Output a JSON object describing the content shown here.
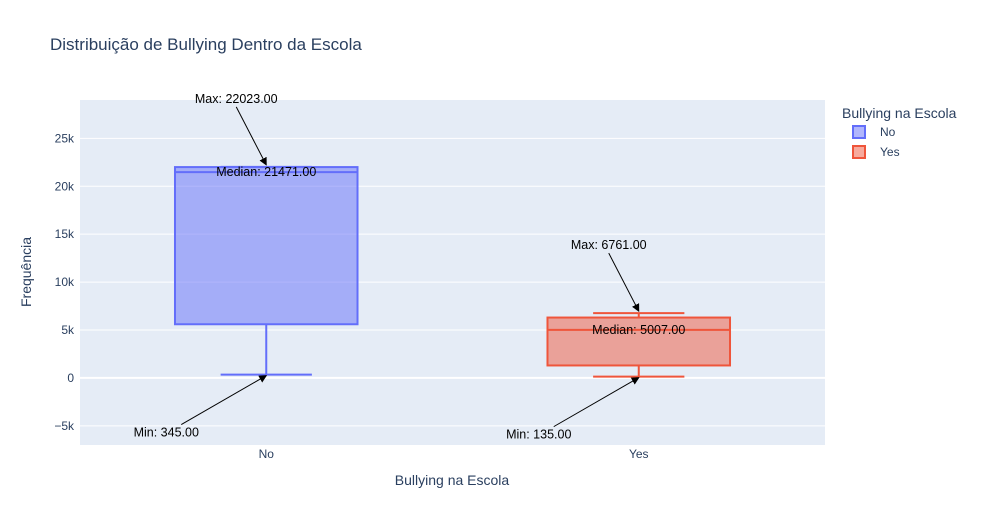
{
  "chart_data": {
    "type": "box",
    "title": "Distribuição de Bullying Dentro da Escola",
    "xlabel": "Bullying na Escola",
    "ylabel": "Frequência",
    "categories": [
      "No",
      "Yes"
    ],
    "ylim": [
      -7000,
      29000
    ],
    "yticks": [
      -5000,
      0,
      5000,
      10000,
      15000,
      20000,
      25000
    ],
    "ytick_labels": [
      "−5k",
      "0",
      "5k",
      "10k",
      "15k",
      "20k",
      "25k"
    ],
    "grid": true,
    "legend": {
      "title": "Bullying na Escola",
      "placement": "right",
      "entries": [
        "No",
        "Yes"
      ]
    },
    "series": [
      {
        "name": "No",
        "color": "#636efa",
        "min": 345,
        "q1": 5600,
        "median": 21471,
        "q3": 22000,
        "max": 22023,
        "annotations": {
          "max": "Max: 22023.00",
          "median": "Median: 21471.00",
          "min": "Min: 345.00"
        }
      },
      {
        "name": "Yes",
        "color": "#ef553b",
        "min": 135,
        "q1": 1300,
        "median": 5007,
        "q3": 6300,
        "max": 6761,
        "annotations": {
          "max": "Max: 6761.00",
          "median": "Median: 5007.00",
          "min": "Min: 135.00"
        }
      }
    ]
  }
}
